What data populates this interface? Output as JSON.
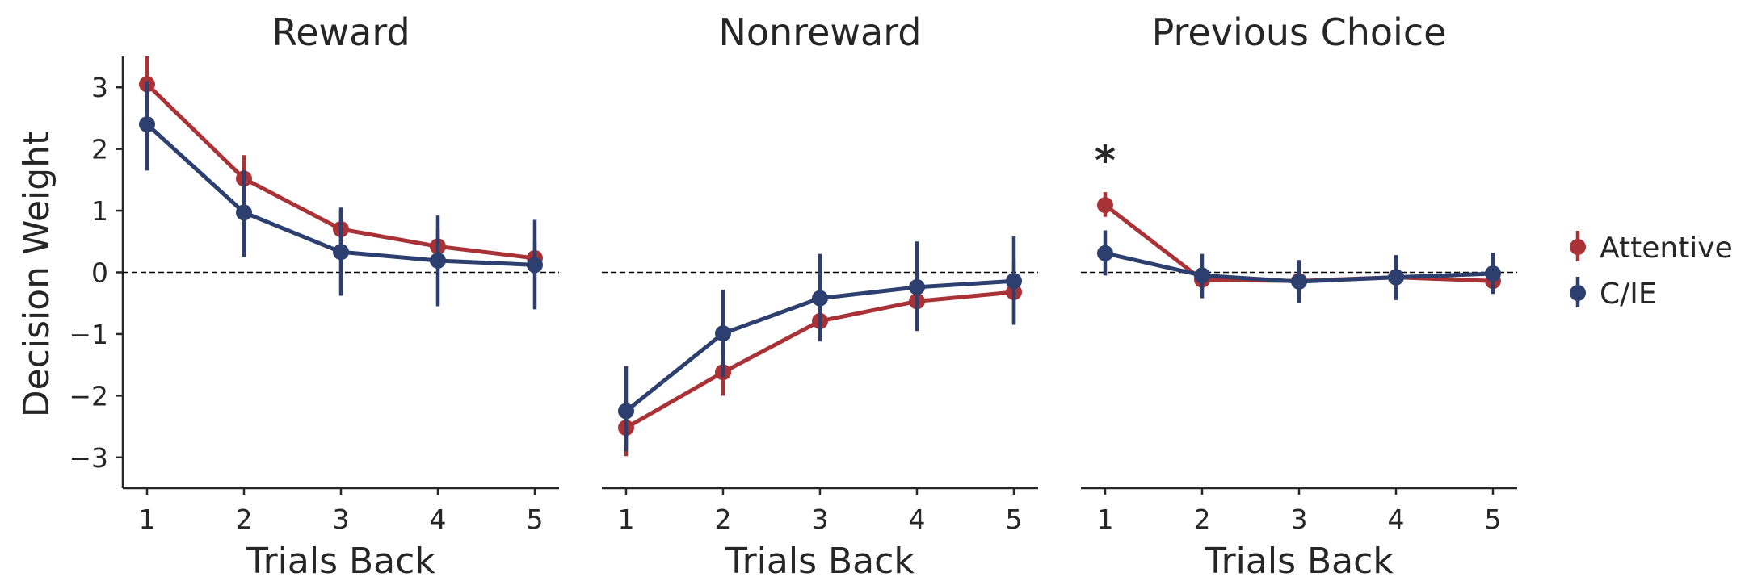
{
  "chart_data": {
    "type": "line",
    "ylabel": "Decision Weight",
    "ylim": [
      -3.5,
      3.5
    ],
    "yticks": [
      -3,
      -2,
      -1,
      0,
      1,
      2,
      3
    ],
    "ytick_labels": [
      "−3",
      "−2",
      "−1",
      "0",
      "1",
      "2",
      "3"
    ],
    "x": [
      1,
      2,
      3,
      4,
      5
    ],
    "xtick_labels": [
      "1",
      "2",
      "3",
      "4",
      "5"
    ],
    "reference_line": 0,
    "colors": {
      "Attentive": "#a83236",
      "C/IE": "#2c3f6e"
    },
    "legend": {
      "position": "right",
      "entries": [
        "Attentive",
        "C/IE"
      ]
    },
    "panels": [
      {
        "title": "Reward",
        "xlabel": "Trials Back",
        "annotation": "",
        "series": [
          {
            "name": "Attentive",
            "values": [
              3.05,
              1.52,
              0.7,
              0.42,
              0.23
            ],
            "err_low": [
              2.6,
              1.15,
              0.4,
              0.15,
              0.0
            ],
            "err_high": [
              3.5,
              1.9,
              1.0,
              0.7,
              0.5
            ]
          },
          {
            "name": "C/IE",
            "values": [
              2.4,
              0.97,
              0.33,
              0.19,
              0.12
            ],
            "err_low": [
              1.65,
              0.25,
              -0.38,
              -0.55,
              -0.6
            ],
            "err_high": [
              3.1,
              1.65,
              1.05,
              0.92,
              0.85
            ]
          }
        ]
      },
      {
        "title": "Nonreward",
        "xlabel": "Trials Back",
        "annotation": "",
        "series": [
          {
            "name": "Attentive",
            "values": [
              -2.52,
              -1.62,
              -0.79,
              -0.47,
              -0.32
            ],
            "err_low": [
              -2.98,
              -2.0,
              -1.12,
              -0.95,
              -0.82
            ],
            "err_high": [
              -2.1,
              -1.25,
              -0.45,
              -0.05,
              0.15
            ]
          },
          {
            "name": "C/IE",
            "values": [
              -2.25,
              -0.99,
              -0.42,
              -0.24,
              -0.14
            ],
            "err_low": [
              -2.9,
              -1.7,
              -1.12,
              -0.95,
              -0.85
            ],
            "err_high": [
              -1.52,
              -0.28,
              0.3,
              0.5,
              0.58
            ]
          }
        ]
      },
      {
        "title": "Previous Choice",
        "xlabel": "Trials Back",
        "annotation": "*",
        "series": [
          {
            "name": "Attentive",
            "values": [
              1.09,
              -0.12,
              -0.14,
              -0.08,
              -0.14
            ],
            "err_low": [
              0.9,
              -0.3,
              -0.32,
              -0.28,
              -0.32
            ],
            "err_high": [
              1.3,
              0.05,
              0.05,
              0.12,
              0.05
            ]
          },
          {
            "name": "C/IE",
            "values": [
              0.31,
              -0.05,
              -0.15,
              -0.08,
              -0.02
            ],
            "err_low": [
              -0.05,
              -0.42,
              -0.5,
              -0.45,
              -0.35
            ],
            "err_high": [
              0.68,
              0.3,
              0.2,
              0.28,
              0.32
            ]
          }
        ]
      }
    ]
  }
}
